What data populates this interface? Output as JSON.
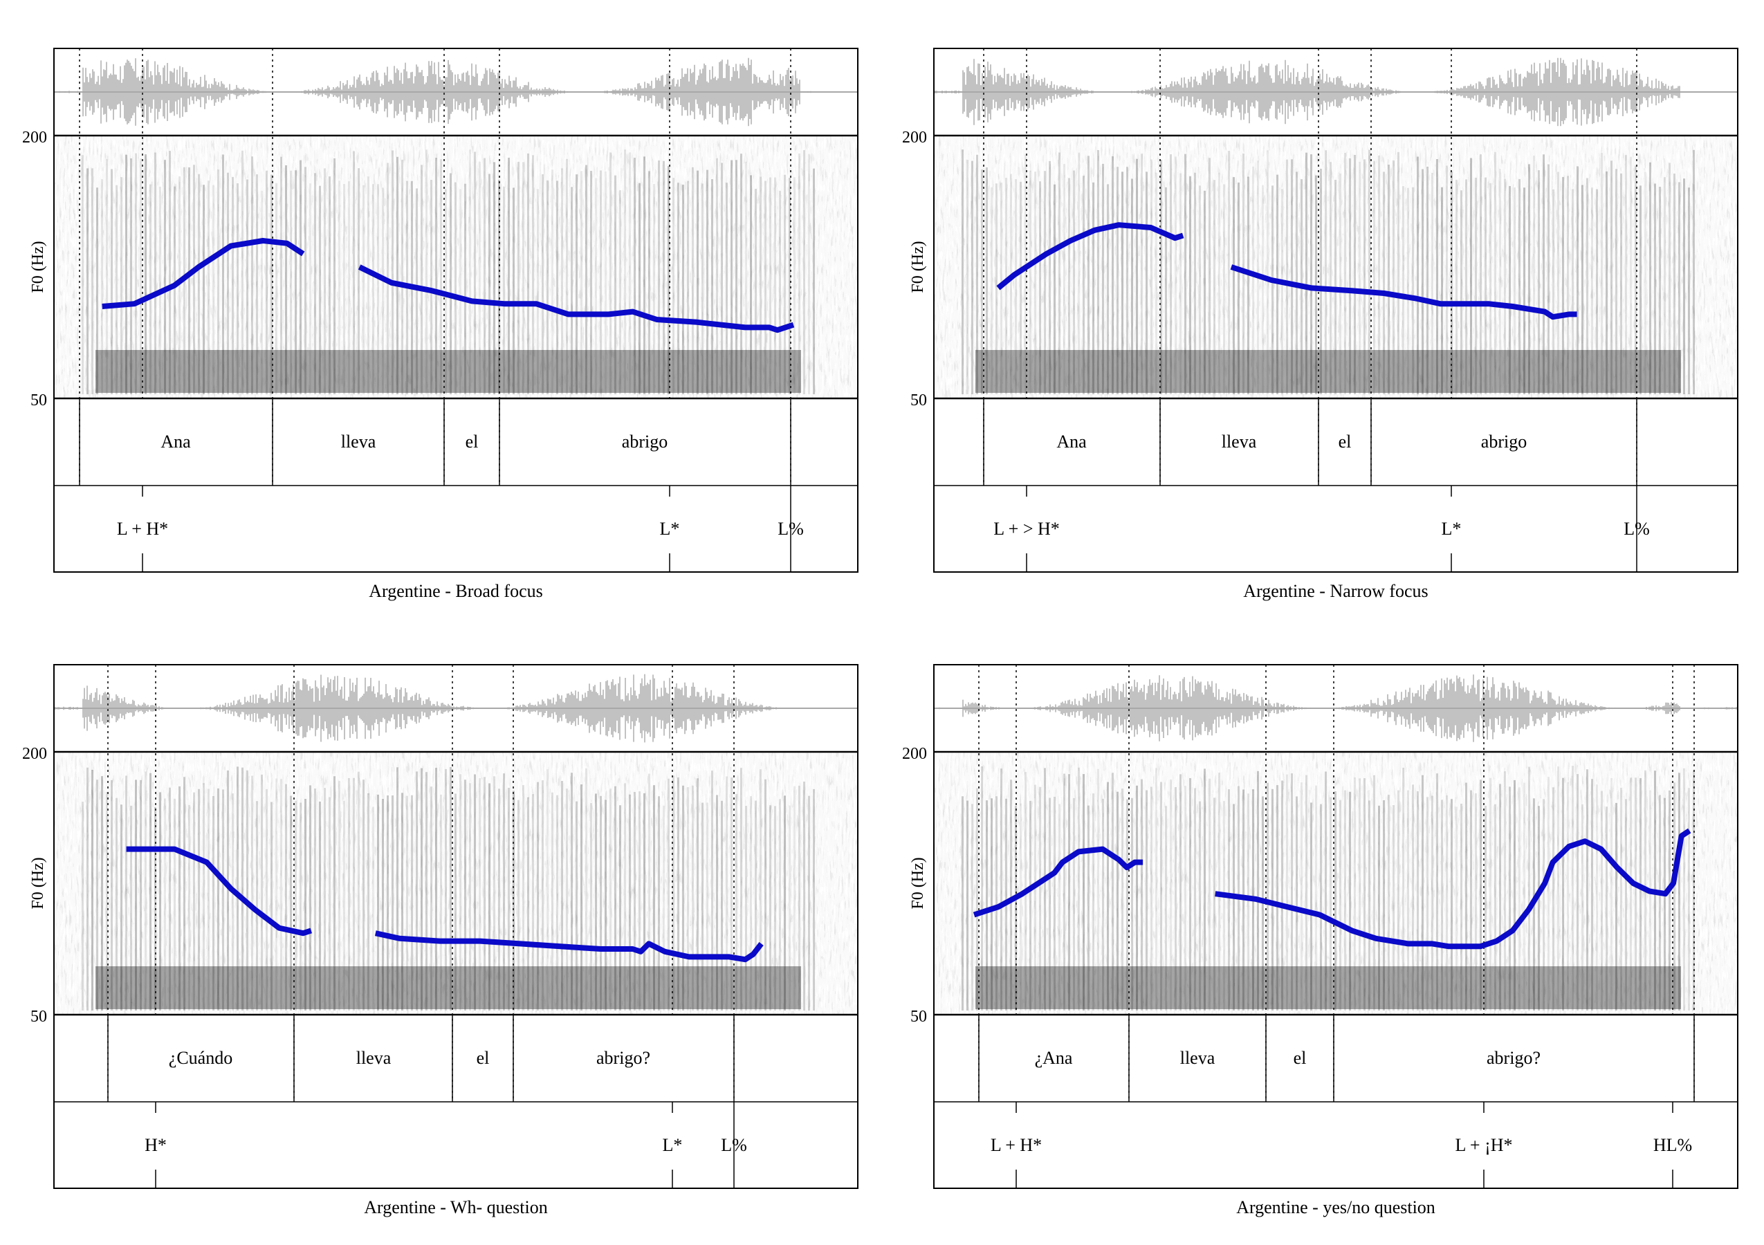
{
  "y_axis_label": "F0 (Hz)",
  "colors": {
    "pitch": "#0a0ac8",
    "waveform": "#a8a8a8",
    "frame": "#000000",
    "spectrogram": "#000000"
  },
  "panels": [
    {
      "caption": "Argentine - Broad focus",
      "y_ticks": [
        "200",
        "50"
      ],
      "words": [
        "Ana",
        "lleva",
        "el",
        "abrigo"
      ],
      "tones": [
        "L + H*",
        "L*",
        "L%"
      ],
      "pitch_contour": [
        [
          0.06,
          0.35
        ],
        [
          0.1,
          0.36
        ],
        [
          0.15,
          0.43
        ],
        [
          0.18,
          0.5
        ],
        [
          0.22,
          0.58
        ],
        [
          0.26,
          0.6
        ],
        [
          0.29,
          0.59
        ],
        [
          0.31,
          0.55
        ],
        null,
        [
          0.38,
          0.5
        ],
        [
          0.42,
          0.44
        ],
        [
          0.47,
          0.41
        ],
        [
          0.52,
          0.37
        ],
        [
          0.56,
          0.36
        ],
        [
          0.6,
          0.36
        ],
        [
          0.64,
          0.32
        ],
        [
          0.69,
          0.32
        ],
        [
          0.72,
          0.33
        ],
        [
          0.73,
          0.32
        ],
        [
          0.75,
          0.3
        ],
        [
          0.8,
          0.29
        ],
        [
          0.86,
          0.27
        ],
        [
          0.89,
          0.27
        ],
        [
          0.9,
          0.26
        ],
        [
          0.92,
          0.28
        ]
      ]
    },
    {
      "caption": "Argentine - Narrow focus",
      "y_ticks": [
        "200",
        "50"
      ],
      "words": [
        "Ana",
        "lleva",
        "el",
        "abrigo"
      ],
      "tones": [
        "L + > H*",
        "L*",
        "L%"
      ],
      "pitch_contour": [
        [
          0.08,
          0.42
        ],
        [
          0.1,
          0.47
        ],
        [
          0.14,
          0.55
        ],
        [
          0.17,
          0.6
        ],
        [
          0.2,
          0.64
        ],
        [
          0.23,
          0.66
        ],
        [
          0.27,
          0.65
        ],
        [
          0.3,
          0.61
        ],
        [
          0.31,
          0.62
        ],
        null,
        [
          0.37,
          0.5
        ],
        [
          0.42,
          0.45
        ],
        [
          0.47,
          0.42
        ],
        [
          0.52,
          0.41
        ],
        [
          0.56,
          0.4
        ],
        [
          0.6,
          0.38
        ],
        [
          0.63,
          0.36
        ],
        [
          0.67,
          0.36
        ],
        [
          0.69,
          0.36
        ],
        [
          0.72,
          0.35
        ],
        [
          0.74,
          0.34
        ],
        [
          0.76,
          0.33
        ],
        [
          0.77,
          0.31
        ],
        [
          0.79,
          0.32
        ],
        [
          0.8,
          0.32
        ]
      ]
    },
    {
      "caption": "Argentine - Wh- question",
      "y_ticks": [
        "200",
        "50"
      ],
      "words": [
        "¿Cuándo",
        "lleva",
        "el",
        "abrigo?"
      ],
      "tones": [
        "H*",
        "L*",
        "L%"
      ],
      "pitch_contour": [
        [
          0.09,
          0.63
        ],
        [
          0.15,
          0.63
        ],
        [
          0.19,
          0.58
        ],
        [
          0.22,
          0.48
        ],
        [
          0.25,
          0.4
        ],
        [
          0.28,
          0.33
        ],
        [
          0.31,
          0.31
        ],
        [
          0.32,
          0.32
        ],
        null,
        [
          0.4,
          0.31
        ],
        [
          0.43,
          0.29
        ],
        [
          0.48,
          0.28
        ],
        [
          0.53,
          0.28
        ],
        [
          0.58,
          0.27
        ],
        [
          0.63,
          0.26
        ],
        [
          0.68,
          0.25
        ],
        [
          0.72,
          0.25
        ],
        [
          0.73,
          0.24
        ],
        [
          0.74,
          0.27
        ],
        [
          0.76,
          0.24
        ],
        [
          0.79,
          0.22
        ],
        [
          0.82,
          0.22
        ],
        [
          0.84,
          0.22
        ],
        [
          0.86,
          0.21
        ],
        [
          0.87,
          0.23
        ],
        [
          0.88,
          0.27
        ]
      ]
    },
    {
      "caption": "Argentine - yes/no question",
      "y_ticks": [
        "200",
        "50"
      ],
      "words": [
        "¿Ana",
        "lleva",
        "el",
        "abrigo?"
      ],
      "tones": [
        "L + H*",
        "L + ¡H*",
        "HL%"
      ],
      "pitch_contour": [
        [
          0.05,
          0.38
        ],
        [
          0.08,
          0.41
        ],
        [
          0.11,
          0.46
        ],
        [
          0.13,
          0.5
        ],
        [
          0.15,
          0.54
        ],
        [
          0.16,
          0.58
        ],
        [
          0.18,
          0.62
        ],
        [
          0.21,
          0.63
        ],
        [
          0.23,
          0.59
        ],
        [
          0.24,
          0.56
        ],
        [
          0.25,
          0.58
        ],
        [
          0.26,
          0.58
        ],
        null,
        [
          0.35,
          0.46
        ],
        [
          0.4,
          0.44
        ],
        [
          0.44,
          0.41
        ],
        [
          0.48,
          0.38
        ],
        [
          0.52,
          0.32
        ],
        [
          0.55,
          0.29
        ],
        [
          0.59,
          0.27
        ],
        [
          0.62,
          0.27
        ],
        [
          0.64,
          0.26
        ],
        [
          0.66,
          0.26
        ],
        [
          0.68,
          0.26
        ],
        [
          0.7,
          0.28
        ],
        [
          0.72,
          0.32
        ],
        [
          0.74,
          0.4
        ],
        [
          0.76,
          0.5
        ],
        [
          0.77,
          0.58
        ],
        [
          0.79,
          0.64
        ],
        [
          0.81,
          0.66
        ],
        [
          0.83,
          0.63
        ],
        [
          0.85,
          0.56
        ],
        [
          0.87,
          0.5
        ],
        [
          0.89,
          0.47
        ],
        [
          0.91,
          0.46
        ],
        [
          0.92,
          0.5
        ],
        [
          0.93,
          0.68
        ],
        [
          0.94,
          0.7
        ]
      ]
    }
  ]
}
